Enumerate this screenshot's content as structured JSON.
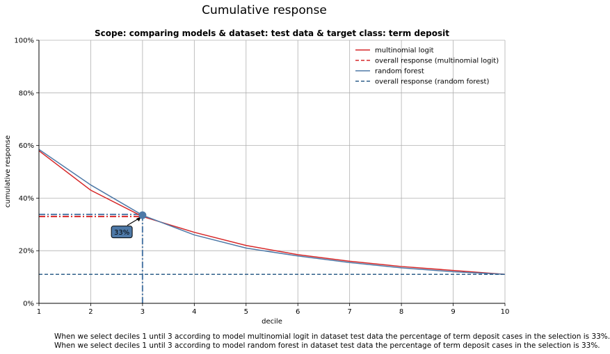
{
  "chart_data": {
    "type": "line",
    "title": "Cumulative response",
    "subtitle": "Scope: comparing models & dataset: test data & target class: term deposit",
    "xlabel": "decile",
    "ylabel": "cumulative response",
    "x": [
      1,
      2,
      3,
      4,
      5,
      6,
      7,
      8,
      9,
      10
    ],
    "xlim": [
      1,
      10
    ],
    "ylim": [
      0,
      1
    ],
    "xticks": [
      "1",
      "2",
      "3",
      "4",
      "5",
      "6",
      "7",
      "8",
      "9",
      "10"
    ],
    "yticks": [
      {
        "value": 0.0,
        "label": "0%"
      },
      {
        "value": 0.2,
        "label": "20%"
      },
      {
        "value": 0.4,
        "label": "40%"
      },
      {
        "value": 0.6,
        "label": "60%"
      },
      {
        "value": 0.8,
        "label": "80%"
      },
      {
        "value": 1.0,
        "label": "100%"
      }
    ],
    "grid": true,
    "legend_position": "top-right",
    "series": [
      {
        "name": "multinomial logit",
        "style": "solid",
        "color": "#d62728",
        "values": [
          0.58,
          0.43,
          0.33,
          0.27,
          0.22,
          0.185,
          0.16,
          0.14,
          0.125,
          0.11
        ]
      },
      {
        "name": "overall response (multinomial logit)",
        "style": "dashed",
        "color": "#d62728",
        "values": [
          0.11,
          0.11,
          0.11,
          0.11,
          0.11,
          0.11,
          0.11,
          0.11,
          0.11,
          0.11
        ]
      },
      {
        "name": "random forest",
        "style": "solid",
        "color": "#4e79a7",
        "values": [
          0.585,
          0.45,
          0.335,
          0.26,
          0.21,
          0.18,
          0.155,
          0.135,
          0.12,
          0.11
        ]
      },
      {
        "name": "overall response (random forest)",
        "style": "dashed",
        "color": "#2f5f8a",
        "values": [
          0.11,
          0.11,
          0.11,
          0.11,
          0.11,
          0.11,
          0.11,
          0.11,
          0.11,
          0.11
        ]
      }
    ],
    "annotation": {
      "x": 3,
      "y": 0.335,
      "label": "33%",
      "label_x": 2.6,
      "label_y": 0.27,
      "color": "#4e79a7"
    },
    "reference_lines": [
      {
        "orientation": "horizontal",
        "y": 0.33,
        "x_to": 3,
        "color": "#d62728"
      },
      {
        "orientation": "horizontal",
        "y": 0.338,
        "x_to": 3,
        "color": "#4e79a7"
      },
      {
        "orientation": "vertical",
        "x": 3,
        "y_to": 0.335,
        "color": "#4e79a7"
      }
    ]
  },
  "notes": [
    "When we select deciles 1 until 3 according to model multinomial logit in dataset test data the percentage of term deposit cases in the selection is 33%.",
    "When we select deciles 1 until 3 according to model random forest in dataset test data the percentage of term deposit cases in the selection is 33%."
  ]
}
